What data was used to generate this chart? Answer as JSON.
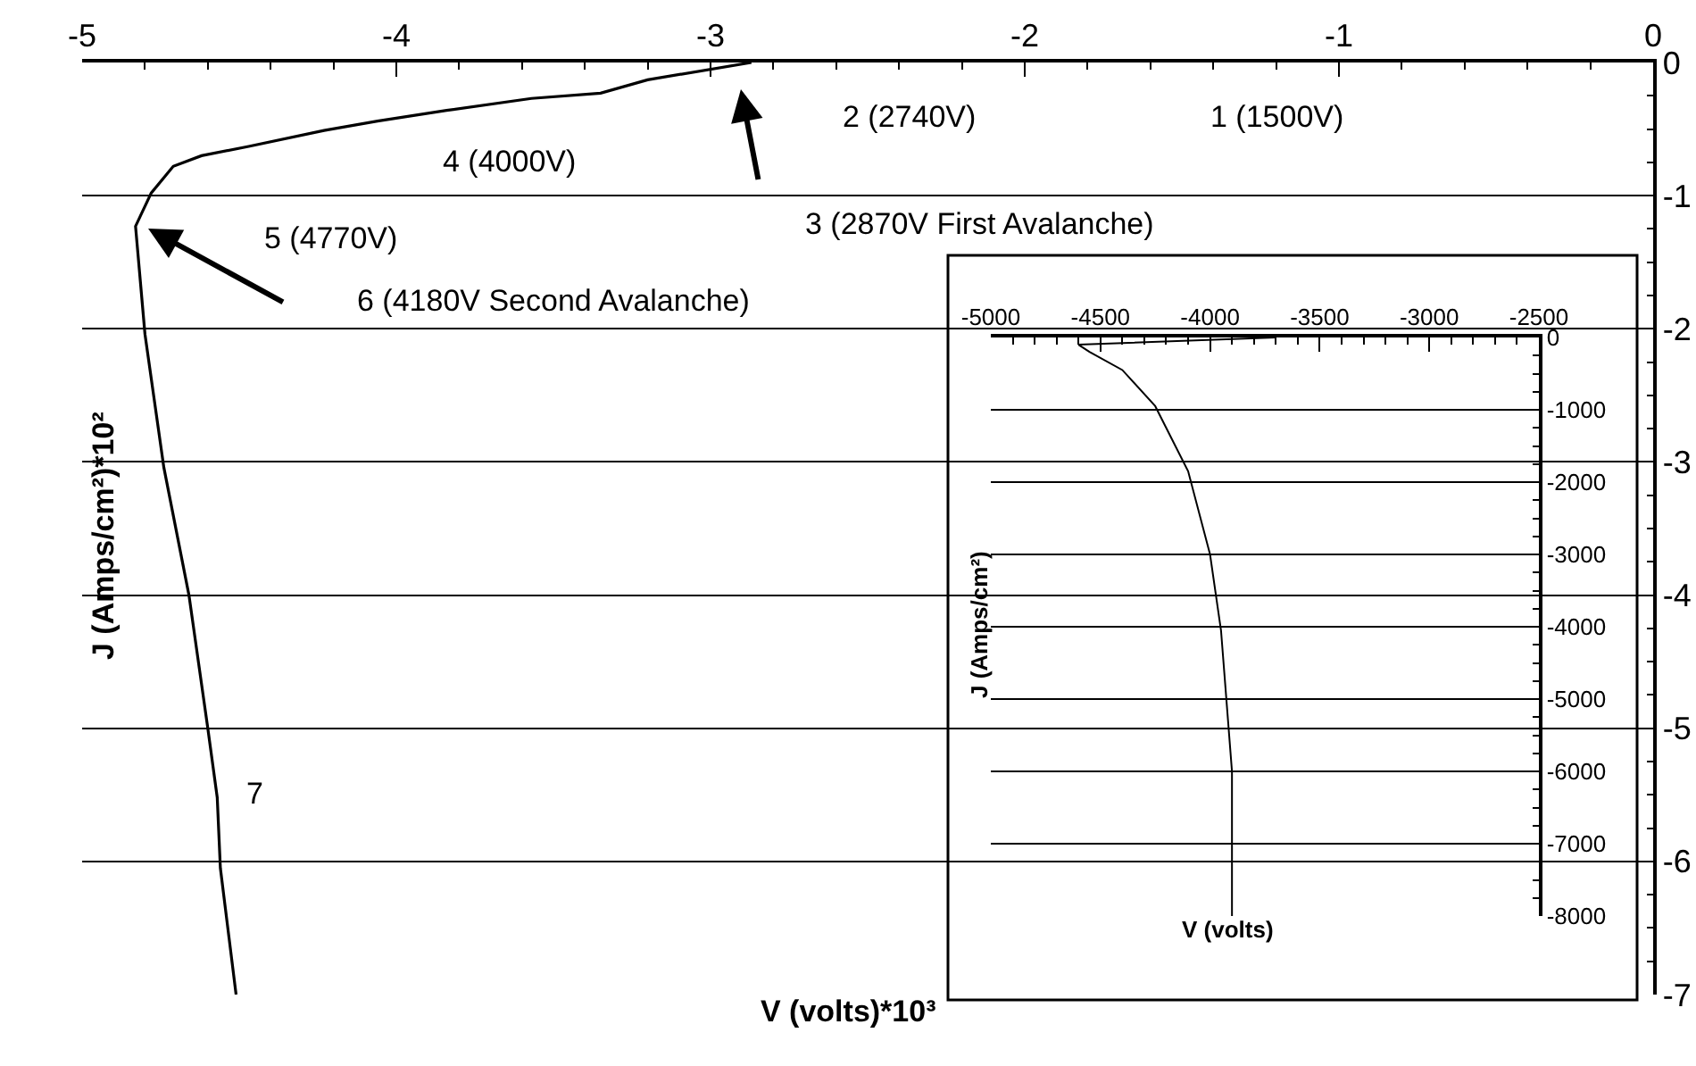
{
  "chart_data": [
    {
      "type": "line",
      "xlabel": "V (volts)*10³",
      "ylabel": "J (Amps/cm²)*10²",
      "color": "#000000",
      "x": [
        -2.87,
        -3.2,
        -3.35,
        -3.57,
        -3.84,
        -4.06,
        -4.23,
        -4.47,
        -4.62,
        -4.71,
        -4.78,
        -4.83,
        -4.8,
        -4.74,
        -4.66,
        -4.6,
        -4.57,
        -4.56,
        -4.51
      ],
      "values": [
        0,
        -0.13,
        -0.23,
        -0.27,
        -0.36,
        -0.44,
        -0.51,
        -0.63,
        -0.7,
        -0.78,
        -0.98,
        -1.23,
        -2.04,
        -3.04,
        -4.0,
        -5.0,
        -5.52,
        -6.05,
        -7.0
      ],
      "xlim": [
        -5,
        0
      ],
      "xticks": [
        -5,
        -4,
        -3,
        -2,
        -1,
        0
      ],
      "ylim": [
        -7,
        0
      ],
      "yticks": [
        0,
        -1,
        -2,
        -3,
        -4,
        -5,
        -6,
        -7
      ],
      "grid": "y",
      "annotations": [
        "1 (1500V)",
        "2 (2740V)",
        "3 (2870V First Avalanche)",
        "4 (4000V)",
        "5 (4770V)",
        "6 (4180V Second Avalanche)",
        "7"
      ]
    },
    {
      "type": "line",
      "xlabel": "V (volts)",
      "ylabel": "J (Amps/cm²)",
      "color": "#000000",
      "x": [
        -3700,
        -4600,
        -4550,
        -4400,
        -4250,
        -4100,
        -4000,
        -3950,
        -3900,
        -3900
      ],
      "values": [
        0,
        -100,
        -200,
        -450,
        -950,
        -1850,
        -3000,
        -4050,
        -6000,
        -8000
      ],
      "xlim": [
        -5000,
        -2500
      ],
      "xticks": [
        -5000,
        -4500,
        -4000,
        -3500,
        -3000,
        -2500
      ],
      "ylim": [
        -8000,
        0
      ],
      "yticks": [
        0,
        -1000,
        -2000,
        -3000,
        -4000,
        -5000,
        -6000,
        -7000,
        -8000
      ],
      "grid": "y"
    }
  ]
}
